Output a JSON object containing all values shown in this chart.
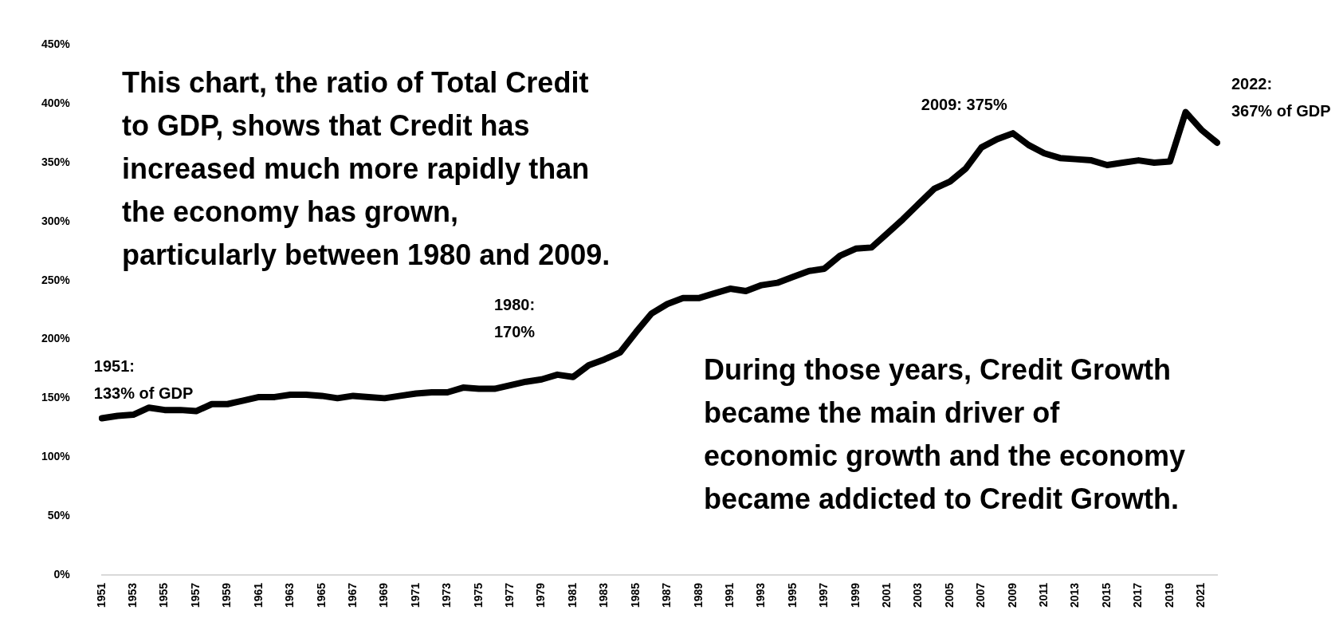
{
  "chart_data": {
    "type": "line",
    "categories": [
      "1951",
      null,
      "1953",
      null,
      "1955",
      null,
      "1957",
      null,
      "1959",
      null,
      "1961",
      null,
      "1963",
      null,
      "1965",
      null,
      "1967",
      null,
      "1969",
      null,
      "1971",
      null,
      "1973",
      null,
      "1975",
      null,
      "1977",
      null,
      "1979",
      null,
      "1981",
      null,
      "1983",
      null,
      "1985",
      null,
      "1987",
      null,
      "1989",
      null,
      "1991",
      null,
      "1993",
      null,
      "1995",
      null,
      "1997",
      null,
      "1999",
      null,
      "2001",
      null,
      "2003",
      null,
      "2005",
      null,
      "2007",
      null,
      "2009",
      null,
      "2011",
      null,
      "2013",
      null,
      "2015",
      null,
      "2017",
      null,
      "2019",
      null,
      "2021",
      null
    ],
    "series": [
      {
        "color": "#000000",
        "values": [
          133,
          135,
          136,
          142,
          140,
          140,
          139,
          145,
          145,
          148,
          151,
          151,
          153,
          153,
          152,
          150,
          152,
          151,
          150,
          152,
          154,
          155,
          155,
          159,
          158,
          158,
          161,
          164,
          166,
          170,
          168,
          178,
          183,
          189,
          206,
          222,
          230,
          235,
          235,
          239,
          243,
          241,
          246,
          248,
          253,
          258,
          260,
          271,
          277,
          278,
          290,
          302,
          315,
          328,
          334,
          345,
          363,
          370,
          375,
          365,
          358,
          354,
          353,
          352,
          348,
          350,
          352,
          350,
          351,
          393,
          378,
          367
        ]
      }
    ],
    "ylim": [
      0,
      450
    ],
    "yticks": [
      {
        "value": 0,
        "label": "0%"
      },
      {
        "value": 50,
        "label": "50%"
      },
      {
        "value": 100,
        "label": "100%"
      },
      {
        "value": 150,
        "label": "150%"
      },
      {
        "value": 200,
        "label": "200%"
      },
      {
        "value": 250,
        "label": "250%"
      },
      {
        "value": 300,
        "label": "300%"
      },
      {
        "value": 350,
        "label": "350%"
      },
      {
        "value": 400,
        "label": "400%"
      },
      {
        "value": 450,
        "label": "450%"
      }
    ],
    "grid": false,
    "legend": false,
    "marker": "none",
    "line_style": "solid",
    "annotations": [
      "This chart, the ratio of Total Credit\nto GDP, shows that Credit has\nincreased much more rapidly than\nthe economy has grown,\nparticularly between 1980 and 2009.",
      "During those years, Credit Growth\nbecame the main driver of\neconomic growth and the economy\nbecame addicted to Credit Growth.",
      {
        "text": "1951:\n133% of GDP",
        "x": "1951",
        "y": 133
      },
      "1980:\n170%",
      {
        "text": "2009: 375%",
        "x": "2009",
        "y": 375
      },
      "2022:\n367% of GDP"
    ]
  }
}
